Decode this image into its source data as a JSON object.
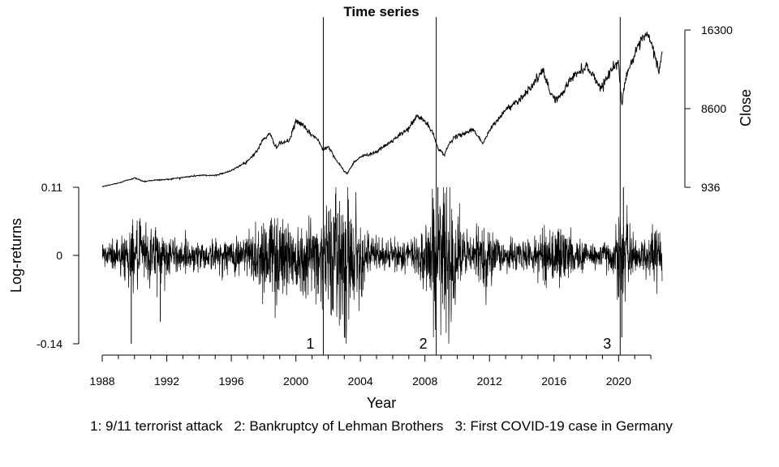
{
  "chart_data": {
    "type": "line",
    "title": "Time series",
    "xlabel": "Year",
    "ylabel_left": "Log-returns",
    "ylabel_right": "Close",
    "x_ticks": [
      "1988",
      "1992",
      "1996",
      "2000",
      "2004",
      "2008",
      "2012",
      "2016",
      "2020"
    ],
    "x_range": [
      1988,
      2022.7
    ],
    "right_ticks": [
      "16300",
      "8600",
      "936"
    ],
    "right_axis_range": [
      936,
      16300
    ],
    "left_ticks": [
      "0.11",
      "0",
      "-0.14"
    ],
    "left_axis_range": [
      -0.14,
      0.11
    ],
    "series": [
      {
        "name": "Close",
        "x": [
          1988.0,
          1989.0,
          1990.0,
          1990.6,
          1991.0,
          1992.0,
          1993.0,
          1994.0,
          1995.0,
          1996.0,
          1997.0,
          1997.6,
          1998.0,
          1998.4,
          1998.8,
          1999.0,
          1999.6,
          2000.0,
          2000.3,
          2000.8,
          2001.3,
          2001.7,
          2002.0,
          2002.5,
          2003.0,
          2003.2,
          2003.6,
          2004.0,
          2005.0,
          2006.0,
          2007.0,
          2007.5,
          2008.0,
          2008.5,
          2008.8,
          2009.2,
          2009.6,
          2010.0,
          2011.0,
          2011.6,
          2012.0,
          2013.0,
          2014.0,
          2015.0,
          2015.3,
          2015.8,
          2016.1,
          2016.5,
          2017.0,
          2018.0,
          2018.5,
          2018.9,
          2019.5,
          2020.0,
          2020.2,
          2020.4,
          2020.8,
          2021.0,
          2021.5,
          2021.8,
          2022.2,
          2022.5,
          2022.7
        ],
        "values": [
          1000,
          1350,
          1850,
          1500,
          1600,
          1700,
          1900,
          2100,
          2100,
          2550,
          3500,
          4500,
          5700,
          6100,
          4800,
          5200,
          5500,
          7400,
          7200,
          6300,
          5700,
          4600,
          5000,
          3600,
          2500,
          2300,
          3400,
          3900,
          4400,
          5500,
          6700,
          7900,
          7400,
          6200,
          4800,
          4100,
          5500,
          5900,
          6600,
          5200,
          6500,
          8500,
          9700,
          11600,
          12300,
          10100,
          9500,
          10000,
          11500,
          12800,
          11700,
          10600,
          12300,
          13200,
          8800,
          11500,
          13200,
          13800,
          15500,
          15800,
          14200,
          12200,
          14300
        ]
      },
      {
        "name": "Log-returns",
        "peaks": [
          {
            "x": 1989.8,
            "value": -0.14
          },
          {
            "x": 1991.6,
            "value": -0.105
          },
          {
            "x": 2002.6,
            "value": 0.068
          },
          {
            "x": 2008.8,
            "value": 0.11
          },
          {
            "x": 2020.2,
            "value": -0.13
          },
          {
            "x": 2020.3,
            "value": 0.11
          }
        ]
      }
    ],
    "events": [
      {
        "number": "1",
        "x": 2001.7,
        "description": "9/11 terrorist attack"
      },
      {
        "number": "2",
        "x": 2008.7,
        "description": "Bankruptcy of Lehman Brothers"
      },
      {
        "number": "3",
        "x": 2020.1,
        "description": "First COVID-19 case in Germany"
      }
    ],
    "footnote": "1: 9/11 terrorist attack   2: Bankruptcy of Lehman Brothers   3: First COVID-19 case in Germany"
  }
}
